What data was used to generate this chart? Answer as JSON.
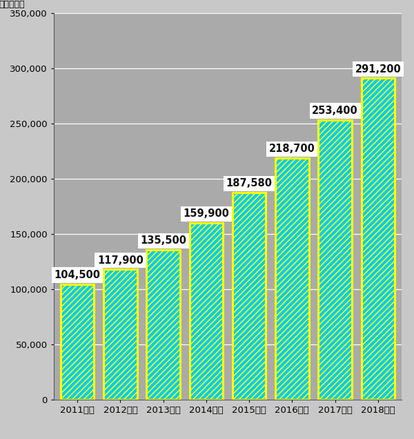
{
  "categories": [
    "2011年度",
    "2012年度",
    "2013年度",
    "2014年度",
    "2015年度",
    "2016年度",
    "2017年度",
    "2018年度"
  ],
  "values": [
    104500,
    117900,
    135500,
    159900,
    187580,
    218700,
    253400,
    291200
  ],
  "labels": [
    "104,500",
    "117,900",
    "135,500",
    "159,900",
    "187,580",
    "218,700",
    "253,400",
    "291,200"
  ],
  "bar_fill_color": "#00CCFF",
  "bar_edge_color": "#FFFF00",
  "hatch_color": "#FFFFFF",
  "background_color": "#C8C8C8",
  "plot_bg_color": "#AAAAAA",
  "ylabel": "（百万円）",
  "ylim": [
    0,
    350000
  ],
  "yticks": [
    0,
    50000,
    100000,
    150000,
    200000,
    250000,
    300000,
    350000
  ],
  "grid_color": "#FFFFFF",
  "label_bg_color": "#FFFFFF",
  "label_font_size": 10.5,
  "axis_font_size": 9.5,
  "ylabel_font_size": 9,
  "bar_width": 0.78,
  "edge_width": 2.2,
  "hatch_linewidth": 1.2
}
